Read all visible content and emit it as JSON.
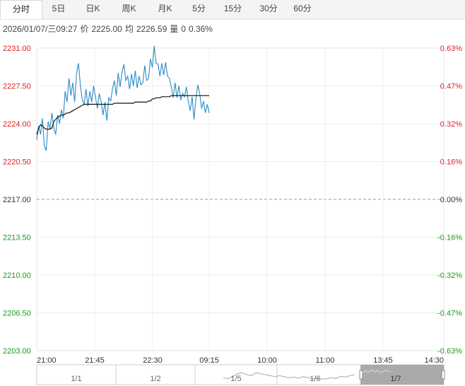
{
  "tabs": [
    {
      "label": "分时",
      "active": true
    },
    {
      "label": "5日",
      "active": false
    },
    {
      "label": "日K",
      "active": false
    },
    {
      "label": "周K",
      "active": false
    },
    {
      "label": "月K",
      "active": false
    },
    {
      "label": "5分",
      "active": false
    },
    {
      "label": "15分",
      "active": false
    },
    {
      "label": "30分",
      "active": false
    },
    {
      "label": "60分",
      "active": false
    }
  ],
  "info": {
    "datetime": "2026/01/07/三09:27",
    "price_label": "价",
    "price": "2225.00",
    "avg_label": "均",
    "avg": "2226.59",
    "vol_label": "量",
    "vol": "0",
    "change": "0.36%"
  },
  "colors": {
    "up": "#e02020",
    "down": "#1a9c1a",
    "base": "#333333",
    "price_line": "#2a8bc6",
    "avg_line": "#111111"
  },
  "chart_data": {
    "type": "line",
    "base_price": 2217.0,
    "ylim": [
      2203.0,
      2231.0
    ],
    "y_ticks": [
      "2231.00",
      "2227.50",
      "2224.00",
      "2220.50",
      "2217.00",
      "2213.50",
      "2210.00",
      "2206.50",
      "2203.00"
    ],
    "pct_ticks": [
      "0.63%",
      "0.47%",
      "0.32%",
      "0.16%",
      "0.00%",
      "-0.16%",
      "-0.32%",
      "-0.47%",
      "-0.63%"
    ],
    "x_ticks": [
      "21:00",
      "21:45",
      "22:30",
      "09:15",
      "10:00",
      "11:00",
      "13:45",
      "14:30"
    ],
    "grid": true,
    "series": [
      {
        "values": [
          2222.5,
          2223.8,
          2223.0,
          2224.5,
          2222.0,
          2221.5,
          2224.2,
          2223.5,
          2225.0,
          2223.6,
          2223.0,
          2224.8,
          2224.0,
          2225.3,
          2224.5,
          2227.0,
          2226.0,
          2228.2,
          2226.6,
          2227.8,
          2226.0,
          2228.6,
          2229.6,
          2227.6,
          2226.2,
          2225.8,
          2227.2,
          2225.6,
          2227.0,
          2226.0,
          2227.5,
          2226.5,
          2225.4,
          2226.8,
          2226.0,
          2224.8,
          2226.0,
          2224.3,
          2226.4,
          2226.1,
          2227.3,
          2228.0,
          2226.6,
          2228.7,
          2227.4,
          2228.8,
          2229.5,
          2228.0,
          2228.4,
          2227.2,
          2228.6,
          2227.5,
          2228.9,
          2227.3,
          2228.4,
          2227.6,
          2227.8,
          2229.4,
          2228.0,
          2228.2,
          2230.0,
          2229.2,
          2231.2,
          2229.6,
          2229.5,
          2228.4,
          2229.6,
          2228.5,
          2229.7,
          2228.4,
          2228.2,
          2227.4,
          2226.4,
          2227.8,
          2226.4,
          2227.5,
          2226.2,
          2226.8,
          2226.5,
          2227.4,
          2226.0,
          2225.2,
          2226.5,
          2224.4,
          2226.3,
          2227.6,
          2226.8,
          2225.4,
          2226.1,
          2225.0,
          2225.8,
          2225.0
        ]
      },
      {
        "values": [
          2223.0,
          2223.6,
          2223.9,
          2223.8,
          2223.6,
          2223.5,
          2223.5,
          2223.5,
          2223.6,
          2224.2,
          2224.4,
          2224.6,
          2224.7,
          2224.8,
          2224.8,
          2224.9,
          2225.0,
          2225.0,
          2225.1,
          2225.2,
          2225.3,
          2225.4,
          2225.5,
          2225.6,
          2225.7,
          2225.8,
          2225.8,
          2225.8,
          2225.8,
          2225.8,
          2225.8,
          2225.8,
          2225.8,
          2225.8,
          2225.8,
          2225.8,
          2225.8,
          2225.8,
          2225.8,
          2225.8,
          2225.8,
          2225.9,
          2225.9,
          2225.9,
          2225.9,
          2225.9,
          2225.9,
          2225.9,
          2225.9,
          2225.9,
          2225.9,
          2225.9,
          2226.0,
          2226.0,
          2226.0,
          2226.0,
          2226.0,
          2226.0,
          2226.0,
          2226.1,
          2226.1,
          2226.3,
          2226.3,
          2226.4,
          2226.4,
          2226.4,
          2226.5,
          2226.5,
          2226.5,
          2226.5,
          2226.5,
          2226.6,
          2226.6,
          2226.6,
          2226.6,
          2226.6,
          2226.6,
          2226.6,
          2226.6,
          2226.6,
          2226.6,
          2226.6,
          2226.6,
          2226.6,
          2226.6,
          2226.6,
          2226.6,
          2226.6,
          2226.6,
          2226.6,
          2226.6,
          2226.6
        ]
      }
    ],
    "navigator": {
      "labels": [
        "1/1",
        "1/2",
        "1/5",
        "1/6",
        "1/7"
      ],
      "trend": [
        0.35,
        0.3,
        0.4,
        0.55,
        0.6,
        0.5,
        0.45,
        0.6,
        0.55,
        0.5,
        0.45,
        0.4,
        0.45,
        0.4,
        0.35,
        0.38,
        0.32,
        0.4,
        0.35,
        0.3,
        0.32,
        0.28,
        0.3,
        0.35,
        0.3,
        0.42,
        0.38,
        0.45,
        0.5
      ],
      "trend_selected": [
        0.55,
        0.7,
        0.6,
        0.75,
        0.65,
        0.7,
        0.6,
        0.68,
        0.72,
        0.65
      ]
    }
  }
}
